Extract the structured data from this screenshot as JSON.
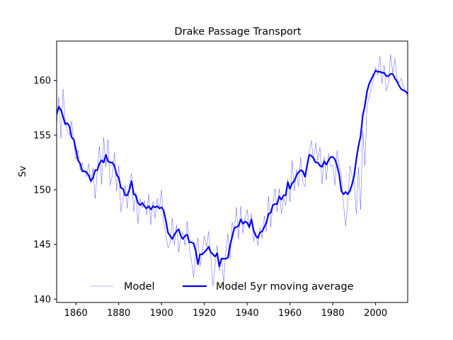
{
  "chart_data": {
    "type": "line",
    "title": "Drake Passage Transport",
    "xlabel": "",
    "ylabel": "Sv",
    "xlim": [
      1851,
      2015
    ],
    "ylim": [
      139.7,
      163.6
    ],
    "xticks": [
      1860,
      1880,
      1900,
      1920,
      1940,
      1960,
      1980,
      2000
    ],
    "yticks": [
      140,
      145,
      150,
      155,
      160
    ],
    "grid": false,
    "legend_position": "bottom-center",
    "series": [
      {
        "name": "Model",
        "color": "#0000ff",
        "x": [
          1851,
          1852,
          1853,
          1854,
          1855,
          1856,
          1857,
          1858,
          1859,
          1860,
          1861,
          1862,
          1863,
          1864,
          1865,
          1866,
          1867,
          1868,
          1869,
          1870,
          1871,
          1872,
          1873,
          1874,
          1875,
          1876,
          1877,
          1878,
          1879,
          1880,
          1881,
          1882,
          1883,
          1884,
          1885,
          1886,
          1887,
          1888,
          1889,
          1890,
          1891,
          1892,
          1893,
          1894,
          1895,
          1896,
          1897,
          1898,
          1899,
          1900,
          1901,
          1902,
          1903,
          1904,
          1905,
          1906,
          1907,
          1908,
          1909,
          1910,
          1911,
          1912,
          1913,
          1914,
          1915,
          1916,
          1917,
          1918,
          1919,
          1920,
          1921,
          1922,
          1923,
          1924,
          1925,
          1926,
          1927,
          1928,
          1929,
          1930,
          1931,
          1932,
          1933,
          1934,
          1935,
          1936,
          1937,
          1938,
          1939,
          1940,
          1941,
          1942,
          1943,
          1944,
          1945,
          1946,
          1947,
          1948,
          1949,
          1950,
          1951,
          1952,
          1953,
          1954,
          1955,
          1956,
          1957,
          1958,
          1959,
          1960,
          1961,
          1962,
          1963,
          1964,
          1965,
          1966,
          1967,
          1968,
          1969,
          1970,
          1971,
          1972,
          1973,
          1974,
          1975,
          1976,
          1977,
          1978,
          1979,
          1980,
          1981,
          1982,
          1983,
          1984,
          1985,
          1986,
          1987,
          1988,
          1989,
          1990,
          1991,
          1992,
          1993,
          1994,
          1995,
          1996,
          1997,
          1998,
          1999,
          2000,
          2001,
          2002,
          2003,
          2004,
          2005,
          2006,
          2007,
          2008,
          2009,
          2010,
          2011,
          2012,
          2013,
          2014,
          2015
        ],
        "values": [
          155.9,
          158.5,
          154.7,
          159.2,
          156.3,
          155.4,
          155.0,
          156.3,
          154.4,
          152.8,
          153.6,
          151.8,
          152.5,
          151.7,
          151.2,
          152.4,
          150.6,
          152.0,
          149.2,
          151.7,
          154.0,
          150.5,
          154.8,
          152.1,
          154.6,
          150.4,
          151.3,
          153.4,
          149.9,
          152.2,
          148.0,
          149.1,
          150.4,
          148.3,
          150.6,
          151.5,
          148.0,
          149.8,
          146.9,
          149.2,
          148.3,
          149.0,
          147.7,
          149.6,
          146.8,
          148.9,
          147.4,
          149.2,
          148.2,
          150.0,
          147.0,
          146.0,
          144.7,
          145.1,
          147.4,
          145.0,
          146.8,
          144.3,
          145.7,
          146.1,
          144.9,
          147.1,
          144.6,
          143.5,
          142.0,
          144.3,
          145.6,
          143.0,
          144.2,
          145.8,
          144.8,
          146.2,
          144.0,
          141.2,
          143.0,
          144.9,
          142.6,
          143.8,
          141.4,
          144.3,
          146.0,
          143.7,
          147.0,
          146.3,
          148.4,
          145.5,
          148.5,
          146.0,
          147.3,
          148.2,
          146.4,
          147.8,
          145.3,
          146.1,
          144.9,
          146.5,
          145.6,
          147.6,
          146.2,
          149.4,
          146.6,
          148.6,
          150.1,
          148.0,
          150.1,
          147.8,
          149.2,
          148.6,
          151.0,
          148.9,
          152.7,
          149.9,
          151.8,
          150.3,
          153.0,
          150.7,
          150.3,
          152.3,
          153.5,
          154.5,
          152.6,
          154.3,
          152.7,
          153.9,
          150.5,
          153.0,
          150.9,
          153.3,
          152.1,
          152.3,
          150.4,
          153.6,
          152.2,
          151.3,
          148.7,
          146.7,
          148.7,
          152.2,
          151.3,
          150.8,
          147.8,
          152.1,
          148.2,
          155.4,
          152.2,
          157.8,
          158.4,
          159.3,
          160.1,
          161.2,
          160.5,
          162.2,
          159.7,
          161.4,
          159.0,
          159.8,
          162.4,
          160.7,
          162.0,
          160.1,
          159.8,
          160.2,
          159.4,
          159.0,
          158.5
        ]
      },
      {
        "name": "Model 5yr moving average",
        "color": "#0000ff",
        "x": [
          1851,
          1852,
          1853,
          1854,
          1855,
          1856,
          1857,
          1858,
          1859,
          1860,
          1861,
          1862,
          1863,
          1864,
          1865,
          1866,
          1867,
          1868,
          1869,
          1870,
          1871,
          1872,
          1873,
          1874,
          1875,
          1876,
          1877,
          1878,
          1879,
          1880,
          1881,
          1882,
          1883,
          1884,
          1885,
          1886,
          1887,
          1888,
          1889,
          1890,
          1891,
          1892,
          1893,
          1894,
          1895,
          1896,
          1897,
          1898,
          1899,
          1900,
          1901,
          1902,
          1903,
          1904,
          1905,
          1906,
          1907,
          1908,
          1909,
          1910,
          1911,
          1912,
          1913,
          1914,
          1915,
          1916,
          1917,
          1918,
          1919,
          1920,
          1921,
          1922,
          1923,
          1924,
          1925,
          1926,
          1927,
          1928,
          1929,
          1930,
          1931,
          1932,
          1933,
          1934,
          1935,
          1936,
          1937,
          1938,
          1939,
          1940,
          1941,
          1942,
          1943,
          1944,
          1945,
          1946,
          1947,
          1948,
          1949,
          1950,
          1951,
          1952,
          1953,
          1954,
          1955,
          1956,
          1957,
          1958,
          1959,
          1960,
          1961,
          1962,
          1963,
          1964,
          1965,
          1966,
          1967,
          1968,
          1969,
          1970,
          1971,
          1972,
          1973,
          1974,
          1975,
          1976,
          1977,
          1978,
          1979,
          1980,
          1981,
          1982,
          1983,
          1984,
          1985,
          1986,
          1987,
          1988,
          1989,
          1990,
          1991,
          1992,
          1993,
          1994,
          1995,
          1996,
          1997,
          1998,
          1999,
          2000,
          2001,
          2002,
          2003,
          2004,
          2005,
          2006,
          2007,
          2008,
          2009,
          2010,
          2011,
          2012,
          2013,
          2014,
          2015
        ],
        "values": [
          156.9,
          157.6,
          157.3,
          156.7,
          156.0,
          156.1,
          155.8,
          154.8,
          154.6,
          153.7,
          152.7,
          152.4,
          151.7,
          151.7,
          151.6,
          151.3,
          150.8,
          151.1,
          151.8,
          151.8,
          152.4,
          152.7,
          152.5,
          153.2,
          152.6,
          152.5,
          152.5,
          152.2,
          151.4,
          151.1,
          150.2,
          150.1,
          149.5,
          149.5,
          150.0,
          150.8,
          149.6,
          149.5,
          148.8,
          148.6,
          148.8,
          148.5,
          148.3,
          148.5,
          148.2,
          148.5,
          148.4,
          148.5,
          148.3,
          148.4,
          148.1,
          147.2,
          146.1,
          145.8,
          145.5,
          145.9,
          146.2,
          146.4,
          145.8,
          145.5,
          145.8,
          145.9,
          145.2,
          145.2,
          145.1,
          144.4,
          143.2,
          144.1,
          144.1,
          144.3,
          144.5,
          144.8,
          144.3,
          144.1,
          143.9,
          144.2,
          143.0,
          143.7,
          143.7,
          143.7,
          143.8,
          144.9,
          145.7,
          146.5,
          146.6,
          146.7,
          147.3,
          146.9,
          147.1,
          147.0,
          146.6,
          147.3,
          146.3,
          145.8,
          145.6,
          146.1,
          146.2,
          146.6,
          147.0,
          147.8,
          147.9,
          148.6,
          148.7,
          148.7,
          149.4,
          149.1,
          149.5,
          149.5,
          150.7,
          150.1,
          150.6,
          150.8,
          151.3,
          151.6,
          151.8,
          151.7,
          151.2,
          152.2,
          153.2,
          153.1,
          152.9,
          152.5,
          152.5,
          152.2,
          152.1,
          152.6,
          152.3,
          152.7,
          153.0,
          153.0,
          152.8,
          152.2,
          151.4,
          149.9,
          149.6,
          149.8,
          149.6,
          149.9,
          150.5,
          151.3,
          152.8,
          154.0,
          154.9,
          156.8,
          157.7,
          159.0,
          159.7,
          160.1,
          160.5,
          160.9,
          160.8,
          160.8,
          160.7,
          160.7,
          160.4,
          160.4,
          160.6,
          160.6,
          160.2,
          159.9,
          159.5,
          159.2,
          159.1,
          159.0,
          158.8
        ]
      }
    ]
  }
}
